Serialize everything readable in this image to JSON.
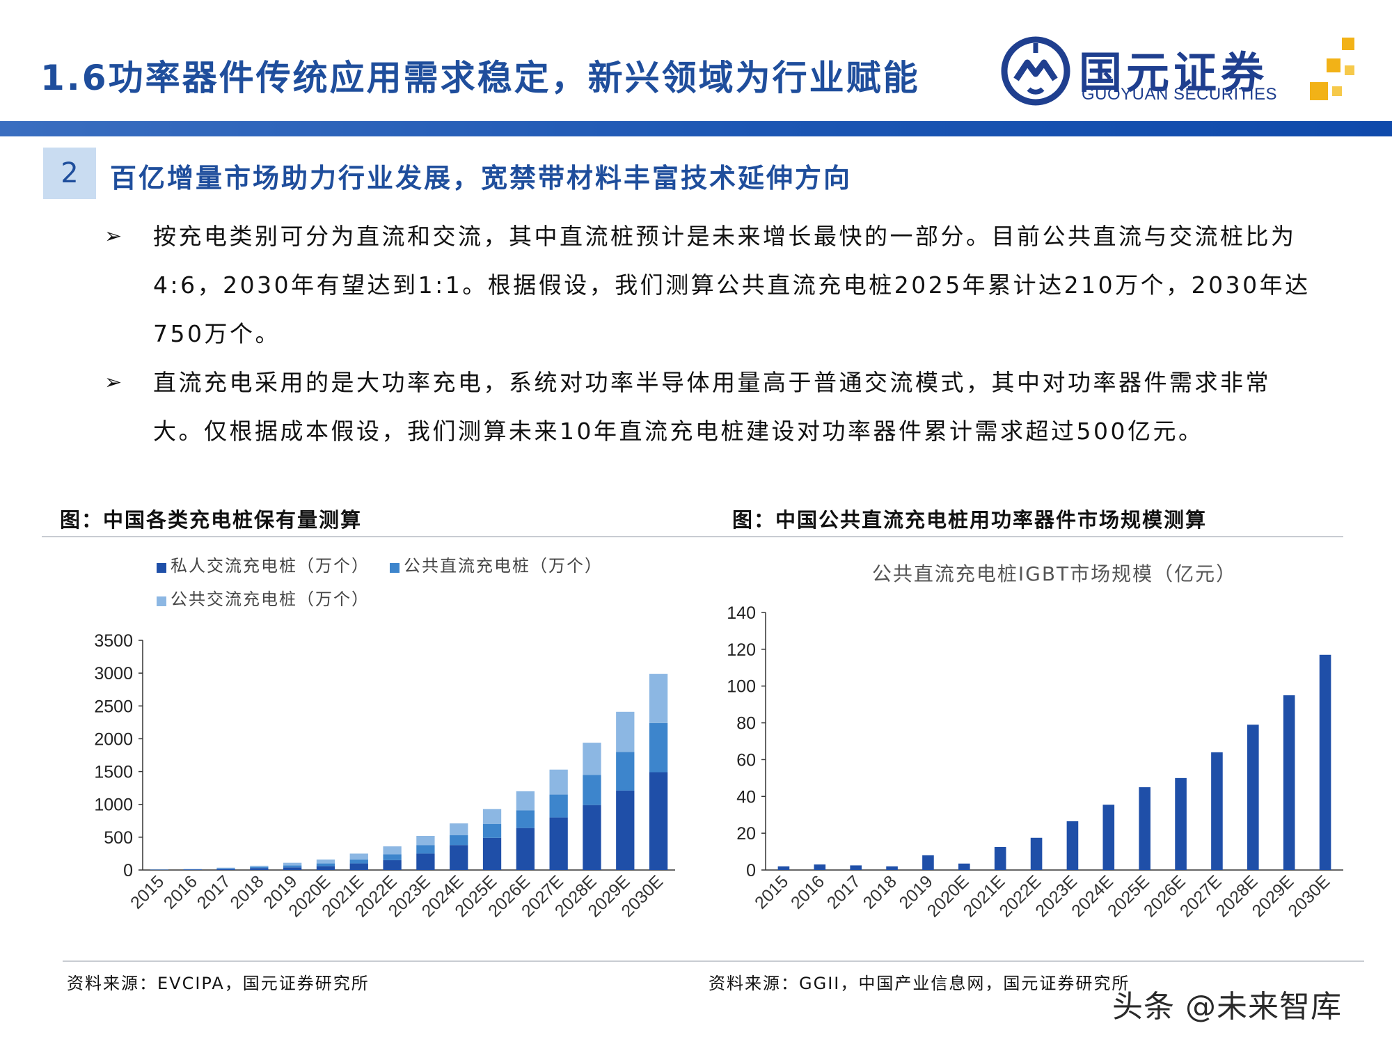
{
  "header": {
    "title": "1.6功率器件传统应用需求稳定，新兴领域为行业赋能",
    "logo_name": "国元证券",
    "logo_en": "GUOYUAN SECURITIES",
    "brand_color": "#1f4e9c"
  },
  "section": {
    "number": "2",
    "title": "百亿增量市场助力行业发展，宽禁带材料丰富技术延伸方向"
  },
  "bullets": [
    {
      "mark": "➢",
      "text": "按充电类别可分为直流和交流，其中直流桩预计是未来增长最快的一部分。目前公共直流与交流桩比为4:6，2030年有望达到1:1。根据假设，我们测算公共直流充电桩2025年累计达210万个，2030年达750万个。"
    },
    {
      "mark": "➢",
      "text": "直流充电采用的是大功率充电，系统对功率半导体用量高于普通交流模式，其中对功率器件需求非常大。仅根据成本假设，我们测算未来10年直流充电桩建设对功率器件累计需求超过500亿元。"
    }
  ],
  "figures": {
    "left_title": "图：中国各类充电桩保有量测算",
    "right_title": "图：中国公共直流充电桩用功率器件市场规模测算",
    "left_source": "资料来源：EVCIPA，国元证券研究所",
    "right_source": "资料来源：GGII，中国产业信息网，国元证券研究所"
  },
  "chart_data": [
    {
      "type": "bar",
      "stacked": true,
      "title": "",
      "categories": [
        "2015",
        "2016",
        "2017",
        "2018",
        "2019",
        "2020E",
        "2021E",
        "2022E",
        "2023E",
        "2024E",
        "2025E",
        "2026E",
        "2027E",
        "2028E",
        "2029E",
        "2030E"
      ],
      "series": [
        {
          "name": "私人交流充电桩（万个）",
          "color": "#1f4fa8",
          "values": [
            4,
            8,
            15,
            30,
            40,
            60,
            100,
            150,
            250,
            380,
            490,
            640,
            800,
            990,
            1210,
            1490
          ]
        },
        {
          "name": "公共直流充电桩（万个）",
          "color": "#3d85cc",
          "values": [
            2,
            4,
            10,
            15,
            30,
            40,
            60,
            90,
            130,
            150,
            210,
            270,
            350,
            460,
            590,
            750
          ]
        },
        {
          "name": "公共交流充电桩（万个）",
          "color": "#8cb7e3",
          "values": [
            2,
            4,
            10,
            20,
            40,
            60,
            90,
            120,
            140,
            180,
            230,
            290,
            380,
            490,
            610,
            750
          ]
        }
      ],
      "yticks": [
        0,
        500,
        1000,
        1500,
        2000,
        2500,
        3000,
        3500
      ],
      "ylim": [
        0,
        3500
      ],
      "legend_position": "top",
      "grid": false
    },
    {
      "type": "bar",
      "title": "公共直流充电桩IGBT市场规模（亿元）",
      "categories": [
        "2015",
        "2016",
        "2017",
        "2018",
        "2019",
        "2020E",
        "2021E",
        "2022E",
        "2023E",
        "2024E",
        "2025E",
        "2026E",
        "2027E",
        "2028E",
        "2029E",
        "2030E"
      ],
      "values": [
        2,
        3,
        2.5,
        2,
        8,
        3.5,
        12.5,
        17.5,
        26.5,
        35.5,
        45,
        50,
        64,
        79,
        95,
        117
      ],
      "color": "#1f4fa8",
      "yticks": [
        0,
        20,
        40,
        60,
        80,
        100,
        120,
        140
      ],
      "ylim": [
        0,
        140
      ],
      "grid": false
    }
  ],
  "watermark": "头条 @未来智库"
}
